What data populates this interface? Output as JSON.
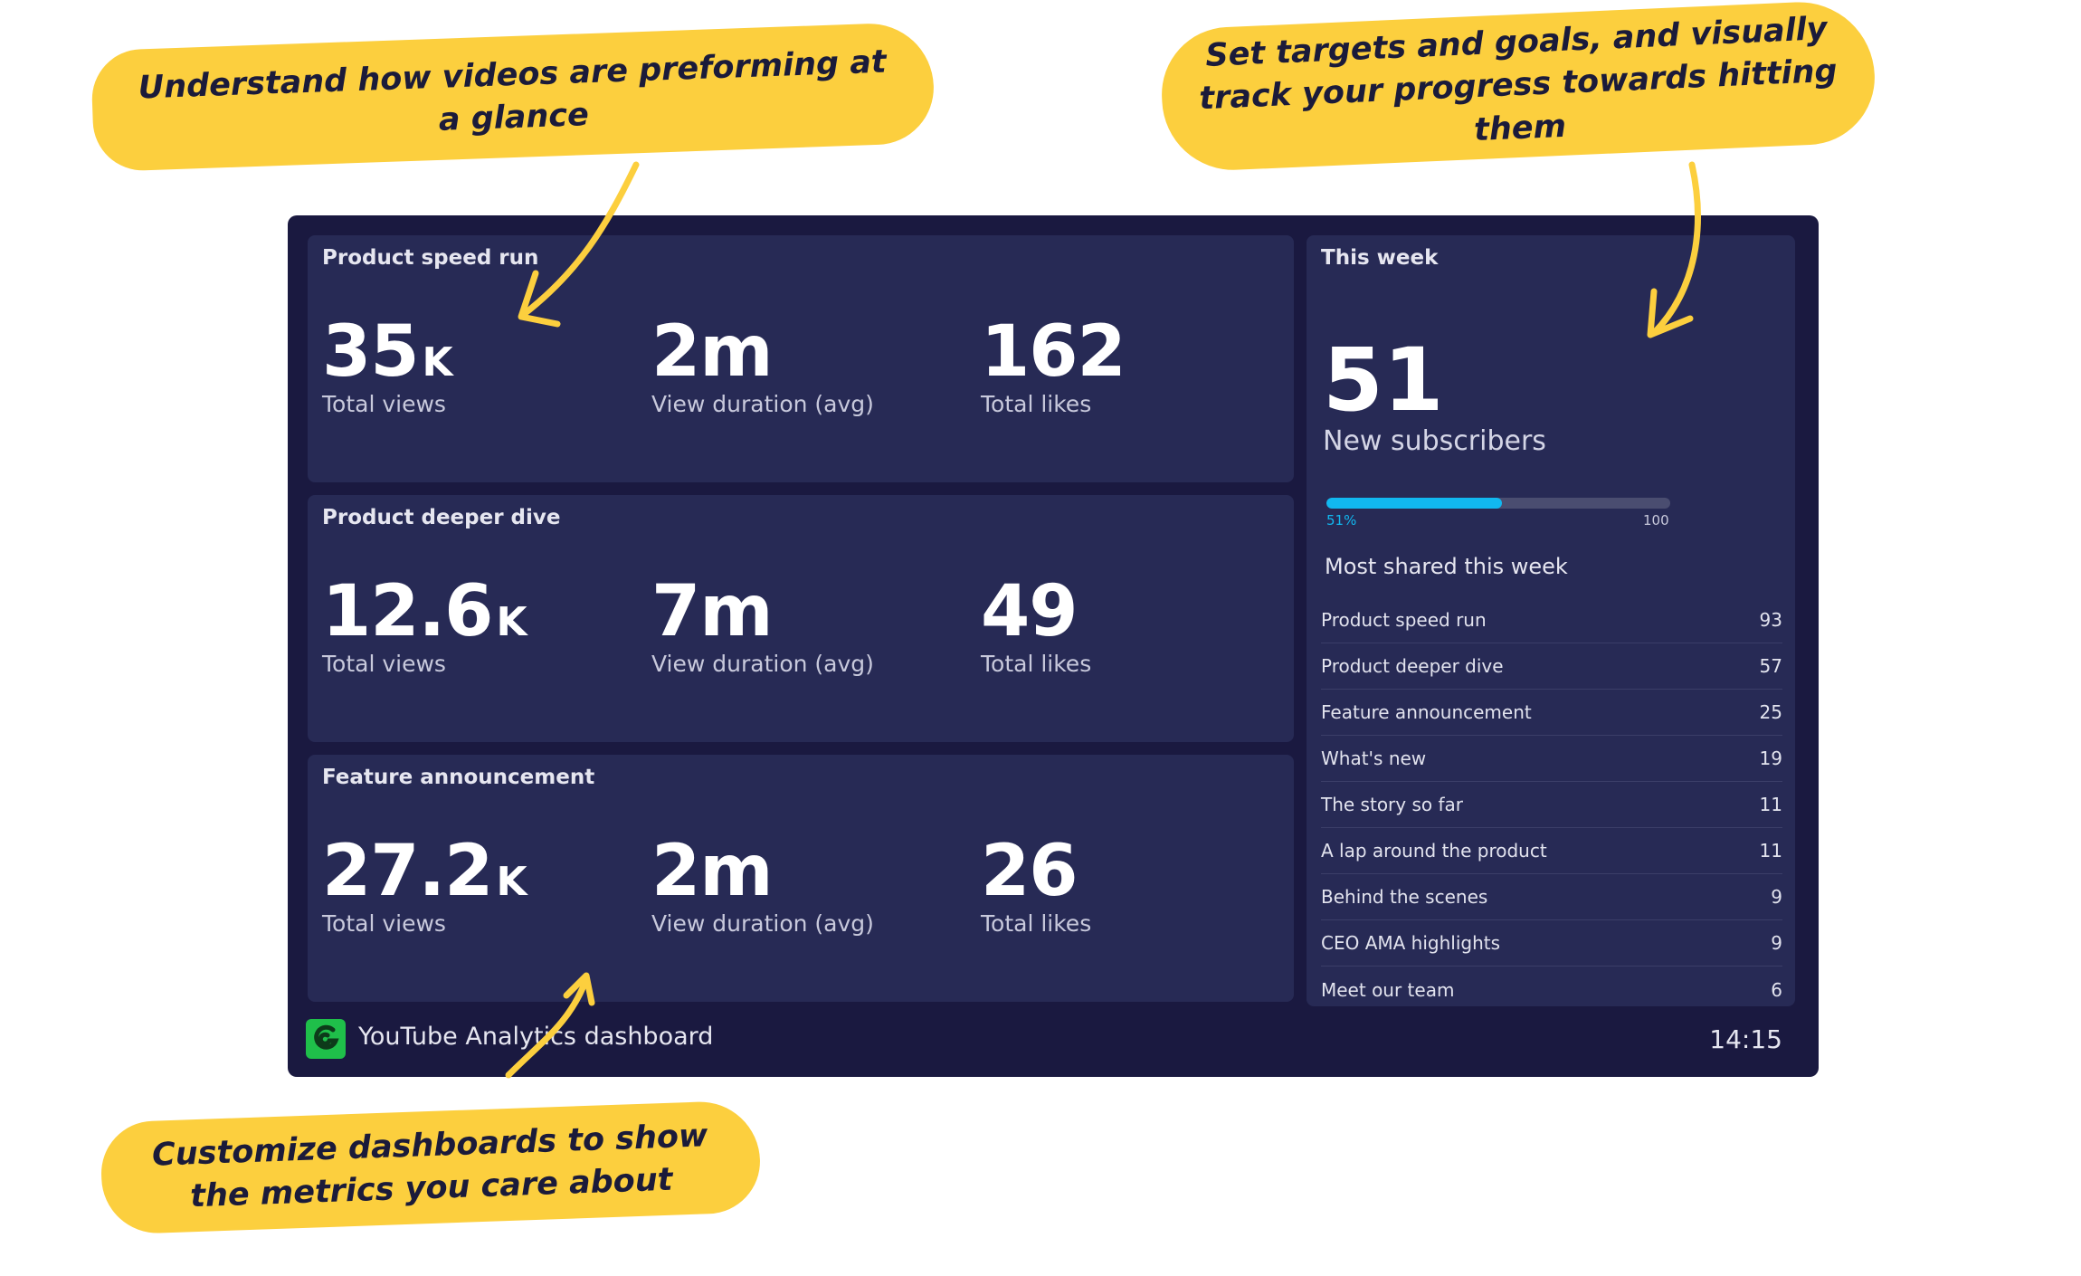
{
  "callouts": {
    "glance": "Understand how videos are preforming at a glance",
    "targets": "Set targets and goals, and visually track your progress towards hitting them",
    "customize": "Customize dashboards to show the metrics you care about"
  },
  "videos": [
    {
      "title": "Product speed run",
      "views": "35",
      "views_unit": "K",
      "views_label": "Total views",
      "duration": "2m",
      "duration_label": "View duration (avg)",
      "likes": "162",
      "likes_label": "Total likes"
    },
    {
      "title": "Product deeper dive",
      "views": "12.6",
      "views_unit": "K",
      "views_label": "Total views",
      "duration": "7m",
      "duration_label": "View duration (avg)",
      "likes": "49",
      "likes_label": "Total likes"
    },
    {
      "title": "Feature announcement",
      "views": "27.2",
      "views_unit": "K",
      "views_label": "Total views",
      "duration": "2m",
      "duration_label": "View duration (avg)",
      "likes": "26",
      "likes_label": "Total likes"
    }
  ],
  "week": {
    "title": "This week",
    "subscribers": "51",
    "subscribers_label": "New subscribers",
    "progress_fraction": 0.51,
    "progress_pct_label": "51%",
    "progress_max_label": "100",
    "shared_title": "Most shared this week",
    "shared": [
      {
        "name": "Product speed run",
        "count": "93"
      },
      {
        "name": "Product deeper dive",
        "count": "57"
      },
      {
        "name": "Feature announcement",
        "count": "25"
      },
      {
        "name": "What's new",
        "count": "19"
      },
      {
        "name": "The story so far",
        "count": "11"
      },
      {
        "name": "A lap around the product",
        "count": "11"
      },
      {
        "name": "Behind the scenes",
        "count": "9"
      },
      {
        "name": "CEO AMA highlights",
        "count": "9"
      },
      {
        "name": "Meet our team",
        "count": "6"
      }
    ]
  },
  "footer": {
    "title": "YouTube Analytics dashboard",
    "time": "14:15"
  },
  "colors": {
    "callout": "#fccf3e",
    "dashboard_bg": "#1a1940",
    "card_bg": "#272a55",
    "progress": "#11b8f0",
    "logo": "#1fbf4a"
  }
}
